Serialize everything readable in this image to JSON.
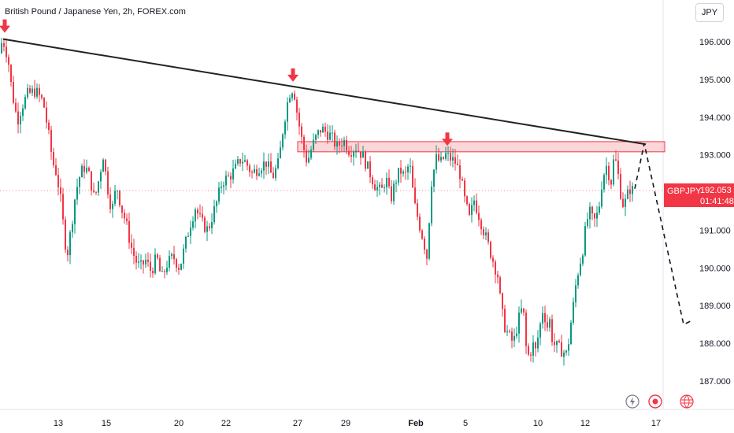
{
  "header": {
    "title": "British Pound / Japanese Yen, 2h, FOREX.com"
  },
  "currency_button": {
    "label": "JPY"
  },
  "price_label": {
    "symbol": "GBPJPY",
    "price": "192.053",
    "countdown": "01:41:48"
  },
  "colors": {
    "up": "#089981",
    "down": "#f23645",
    "trendline": "#1f2420",
    "zone": "#f23645",
    "arrow": "#f23645"
  },
  "bottom_icons": [
    "lightning-icon",
    "record-icon",
    "globe-icon"
  ],
  "chart_data": {
    "type": "candlestick",
    "title": "British Pound / Japanese Yen, 2h, FOREX.com",
    "ylim": [
      186.6,
      196.6
    ],
    "yticks": [
      196,
      195,
      194,
      193,
      192,
      191,
      190,
      189,
      188,
      187
    ],
    "ytick_labels": [
      "196.000",
      "195.000",
      "194.000",
      "193.000",
      "192.000",
      "191.000",
      "190.000",
      "189.000",
      "188.000",
      "187.000"
    ],
    "xticks": [
      {
        "label": "13",
        "bold": false
      },
      {
        "label": "15",
        "bold": false
      },
      {
        "label": "20",
        "bold": false
      },
      {
        "label": "22",
        "bold": false
      },
      {
        "label": "27",
        "bold": false
      },
      {
        "label": "29",
        "bold": false
      },
      {
        "label": "Feb",
        "bold": true
      },
      {
        "label": "5",
        "bold": false
      },
      {
        "label": "10",
        "bold": false
      },
      {
        "label": "12",
        "bold": false
      },
      {
        "label": "17",
        "bold": false
      }
    ],
    "price_path": [
      [
        0,
        195.7
      ],
      [
        3,
        196.1
      ],
      [
        10,
        195.6
      ],
      [
        15,
        194.7
      ],
      [
        22,
        193.9
      ],
      [
        28,
        194.3
      ],
      [
        35,
        194.6
      ],
      [
        45,
        194.7
      ],
      [
        55,
        194.4
      ],
      [
        62,
        193.5
      ],
      [
        67,
        192.8
      ],
      [
        72,
        192.5
      ],
      [
        77,
        191.8
      ],
      [
        81,
        191.0
      ],
      [
        85,
        190.3
      ],
      [
        90,
        191.0
      ],
      [
        96,
        192.0
      ],
      [
        102,
        192.5
      ],
      [
        108,
        192.7
      ],
      [
        114,
        192.4
      ],
      [
        120,
        191.8
      ],
      [
        126,
        192.4
      ],
      [
        131,
        193.0
      ],
      [
        136,
        192.2
      ],
      [
        142,
        191.5
      ],
      [
        148,
        192.2
      ],
      [
        154,
        191.6
      ],
      [
        160,
        191.2
      ],
      [
        166,
        190.6
      ],
      [
        172,
        190.2
      ],
      [
        178,
        190.0
      ],
      [
        185,
        190.2
      ],
      [
        192,
        189.9
      ],
      [
        199,
        190.3
      ],
      [
        205,
        189.7
      ],
      [
        212,
        190.1
      ],
      [
        220,
        190.3
      ],
      [
        228,
        190.0
      ],
      [
        235,
        190.6
      ],
      [
        242,
        191.2
      ],
      [
        248,
        191.6
      ],
      [
        256,
        191.2
      ],
      [
        264,
        191.0
      ],
      [
        270,
        191.4
      ],
      [
        276,
        191.8
      ],
      [
        282,
        192.3
      ],
      [
        290,
        192.4
      ],
      [
        298,
        192.6
      ],
      [
        306,
        192.9
      ],
      [
        312,
        192.8
      ],
      [
        320,
        192.5
      ],
      [
        330,
        192.7
      ],
      [
        338,
        192.8
      ],
      [
        346,
        192.4
      ],
      [
        354,
        192.8
      ],
      [
        360,
        193.8
      ],
      [
        366,
        194.5
      ],
      [
        370,
        194.8
      ],
      [
        374,
        194.6
      ],
      [
        378,
        194.0
      ],
      [
        384,
        193.3
      ],
      [
        390,
        192.8
      ],
      [
        396,
        193.2
      ],
      [
        402,
        193.5
      ],
      [
        408,
        193.7
      ],
      [
        414,
        193.6
      ],
      [
        420,
        193.5
      ],
      [
        428,
        193.2
      ],
      [
        436,
        193.4
      ],
      [
        444,
        193.1
      ],
      [
        452,
        193.2
      ],
      [
        460,
        193.0
      ],
      [
        468,
        192.6
      ],
      [
        476,
        192.2
      ],
      [
        484,
        192.0
      ],
      [
        490,
        192.4
      ],
      [
        496,
        191.8
      ],
      [
        502,
        192.3
      ],
      [
        508,
        192.6
      ],
      [
        514,
        192.4
      ],
      [
        520,
        192.8
      ],
      [
        526,
        191.7
      ],
      [
        532,
        191.2
      ],
      [
        538,
        190.7
      ],
      [
        542,
        190.3
      ],
      [
        548,
        192.3
      ],
      [
        554,
        192.9
      ],
      [
        560,
        192.8
      ],
      [
        566,
        193.0
      ],
      [
        572,
        192.9
      ],
      [
        578,
        192.8
      ],
      [
        584,
        192.5
      ],
      [
        590,
        191.8
      ],
      [
        596,
        191.3
      ],
      [
        602,
        191.8
      ],
      [
        608,
        191.4
      ],
      [
        614,
        191.0
      ],
      [
        620,
        190.6
      ],
      [
        626,
        190.2
      ],
      [
        632,
        189.8
      ],
      [
        636,
        189.0
      ],
      [
        640,
        188.5
      ],
      [
        646,
        188.2
      ],
      [
        652,
        188.0
      ],
      [
        658,
        188.6
      ],
      [
        664,
        189.0
      ],
      [
        668,
        187.9
      ],
      [
        672,
        187.6
      ],
      [
        676,
        188.0
      ],
      [
        680,
        187.8
      ],
      [
        686,
        188.5
      ],
      [
        690,
        189.0
      ],
      [
        694,
        188.4
      ],
      [
        698,
        188.6
      ],
      [
        702,
        188.0
      ],
      [
        708,
        187.9
      ],
      [
        714,
        187.8
      ],
      [
        720,
        187.7
      ],
      [
        724,
        188.4
      ],
      [
        728,
        189.0
      ],
      [
        732,
        189.7
      ],
      [
        736,
        190.1
      ],
      [
        740,
        190.5
      ],
      [
        744,
        191.1
      ],
      [
        748,
        191.5
      ],
      [
        754,
        191.2
      ],
      [
        760,
        191.5
      ],
      [
        765,
        192.4
      ],
      [
        770,
        192.7
      ],
      [
        776,
        192.3
      ],
      [
        780,
        193.0
      ],
      [
        784,
        192.6
      ],
      [
        788,
        192.0
      ],
      [
        792,
        191.6
      ],
      [
        796,
        191.9
      ],
      [
        800,
        192.1
      ],
      [
        804,
        192.05
      ]
    ],
    "annotations": {
      "trendline": {
        "from": {
          "bar": 4,
          "price": 196.07
        },
        "to": {
          "bar": 820,
          "price": 193.28
        }
      },
      "resistance_zone": {
        "price_top": 193.35,
        "price_bottom": 193.08,
        "bar_start": 378,
        "bar_end": 844
      },
      "arrows": [
        {
          "bar": 6,
          "price": 196.3
        },
        {
          "bar": 372,
          "price": 195.0
        },
        {
          "bar": 568,
          "price": 193.3
        }
      ],
      "projection": [
        {
          "bar": 806,
          "price": 192.1
        },
        {
          "bar": 818,
          "price": 193.3
        },
        {
          "bar": 868,
          "price": 188.5
        },
        {
          "bar": 878,
          "price": 188.6
        }
      ]
    }
  }
}
